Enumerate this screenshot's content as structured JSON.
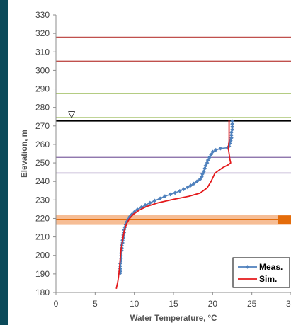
{
  "chart_data": {
    "type": "line",
    "xlabel": "Water Temperature, °C",
    "ylabel": "Elevation, m",
    "xlim": [
      0,
      30
    ],
    "ylim": [
      180,
      330
    ],
    "x_ticks": [
      0,
      5,
      10,
      15,
      20,
      25,
      30
    ],
    "y_ticks": [
      180,
      190,
      200,
      210,
      220,
      230,
      240,
      250,
      260,
      270,
      280,
      290,
      300,
      310,
      320,
      330
    ],
    "grid": false,
    "legend_position": "bottom-right",
    "reference_lines": [
      {
        "y": 318,
        "color": "#c0504d"
      },
      {
        "y": 305,
        "color": "#c0504d"
      },
      {
        "y": 287.5,
        "color": "#9bbb59"
      },
      {
        "y": 274.5,
        "color": "#9bbb59"
      },
      {
        "y": 272.8,
        "color": "#000000"
      },
      {
        "y": 253,
        "color": "#8064a2"
      },
      {
        "y": 244.5,
        "color": "#8064a2"
      },
      {
        "y": 219.3,
        "color": "#e36c09"
      }
    ],
    "intake_band": {
      "y0": 216.5,
      "y1": 222,
      "color": "#f4b183",
      "marker_color": "#e46c0a"
    },
    "water_surface_marker": {
      "x": 2,
      "y": 276,
      "symbol": "▽"
    },
    "series": [
      {
        "name": "Meas.",
        "color": "#4f81bd",
        "marker": "diamond",
        "points": [
          [
            22.5,
            272.5
          ],
          [
            22.5,
            271
          ],
          [
            22.5,
            269.5
          ],
          [
            22.5,
            268
          ],
          [
            22.4,
            266.5
          ],
          [
            22.4,
            265
          ],
          [
            22.4,
            263.5
          ],
          [
            22.3,
            262
          ],
          [
            22.2,
            260.5
          ],
          [
            22.1,
            259
          ],
          [
            21.9,
            258.2
          ],
          [
            21.0,
            257.8
          ],
          [
            20.4,
            257
          ],
          [
            20.0,
            256
          ],
          [
            19.8,
            254.5
          ],
          [
            19.6,
            253
          ],
          [
            19.4,
            251.5
          ],
          [
            19.3,
            250
          ],
          [
            19.1,
            248.5
          ],
          [
            19.0,
            247
          ],
          [
            18.9,
            245.5
          ],
          [
            18.7,
            244
          ],
          [
            18.6,
            242.5
          ],
          [
            18.4,
            241.2
          ],
          [
            18.0,
            240
          ],
          [
            17.6,
            238.8
          ],
          [
            17.2,
            237.8
          ],
          [
            16.8,
            236.8
          ],
          [
            16.3,
            235.8
          ],
          [
            15.8,
            234.8
          ],
          [
            15.2,
            233.8
          ],
          [
            14.6,
            233
          ],
          [
            13.9,
            232
          ],
          [
            13.3,
            230.8
          ],
          [
            12.6,
            229.6
          ],
          [
            12.0,
            228.4
          ],
          [
            11.4,
            227.2
          ],
          [
            10.9,
            226
          ],
          [
            10.4,
            224.8
          ],
          [
            10.0,
            223.4
          ],
          [
            9.7,
            222.2
          ],
          [
            9.4,
            220.8
          ],
          [
            9.2,
            219.4
          ],
          [
            9.0,
            218
          ],
          [
            8.9,
            216.6
          ],
          [
            8.8,
            215.2
          ],
          [
            8.7,
            213.8
          ],
          [
            8.7,
            212.4
          ],
          [
            8.6,
            211
          ],
          [
            8.6,
            209.6
          ],
          [
            8.5,
            208.2
          ],
          [
            8.5,
            206.8
          ],
          [
            8.4,
            205.4
          ],
          [
            8.4,
            204
          ],
          [
            8.4,
            202.6
          ],
          [
            8.3,
            201.2
          ],
          [
            8.3,
            199.8
          ],
          [
            8.3,
            198.4
          ],
          [
            8.3,
            197
          ],
          [
            8.2,
            195.6
          ],
          [
            8.2,
            194.2
          ],
          [
            8.2,
            192.8
          ],
          [
            8.2,
            191.4
          ],
          [
            8.2,
            190.4
          ]
        ]
      },
      {
        "name": "Sim.",
        "color": "#e41a1c",
        "marker": "none",
        "points": [
          [
            22.1,
            273
          ],
          [
            22.1,
            262
          ],
          [
            22.0,
            258
          ],
          [
            22.2,
            252
          ],
          [
            22.3,
            250
          ],
          [
            22.0,
            249
          ],
          [
            21.3,
            247.5
          ],
          [
            20.3,
            244.5
          ],
          [
            19.8,
            240
          ],
          [
            19.3,
            236.5
          ],
          [
            18.4,
            233.7
          ],
          [
            17.0,
            232
          ],
          [
            15.0,
            230.3
          ],
          [
            13.0,
            228.4
          ],
          [
            11.6,
            226.5
          ],
          [
            10.6,
            224.4
          ],
          [
            9.9,
            222.3
          ],
          [
            9.4,
            220
          ],
          [
            9.0,
            217
          ],
          [
            8.7,
            213
          ],
          [
            8.5,
            208
          ],
          [
            8.3,
            203
          ],
          [
            8.2,
            198
          ],
          [
            8.1,
            193
          ],
          [
            8.0,
            189
          ],
          [
            7.9,
            186
          ],
          [
            7.8,
            184
          ],
          [
            7.7,
            182
          ]
        ]
      }
    ]
  }
}
